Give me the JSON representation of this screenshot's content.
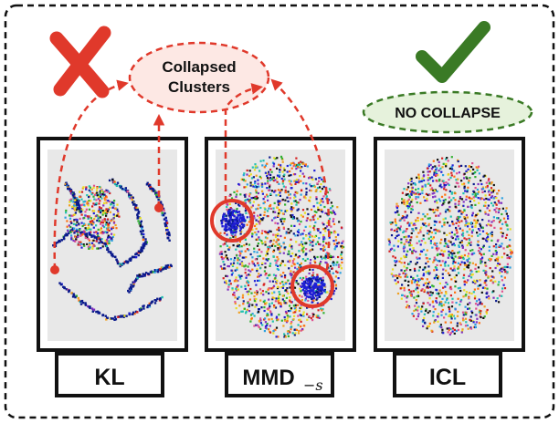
{
  "callouts": {
    "collapsed_line1": "Collapsed",
    "collapsed_line2": "Clusters",
    "no_collapse": "NO COLLAPSE"
  },
  "panels": [
    {
      "id": "kl",
      "label": "KL",
      "label_sub": "",
      "status": "collapsed"
    },
    {
      "id": "mmd",
      "label": "MMD",
      "label_sub": "−s",
      "status": "collapsed"
    },
    {
      "id": "icl",
      "label": "ICL",
      "label_sub": "",
      "status": "ok"
    }
  ],
  "colors": {
    "accent_red": "#e0392b",
    "callout_fill": "#fde8e4",
    "ok_green": "#3a7a25",
    "ok_fill": "#e6f2dc",
    "panel_bg": "#e8e8e8",
    "frame": "#111111"
  },
  "icons": {
    "fail": "cross-mark-icon",
    "pass": "check-mark-icon"
  },
  "point_colors": [
    "#1f1fd6",
    "#0a1a8c",
    "#d62020",
    "#f0a020",
    "#e8e020",
    "#2aa0e0",
    "#30b030",
    "#e05090",
    "#8030c0",
    "#20c0b0",
    "#ff7010",
    "#111111"
  ]
}
